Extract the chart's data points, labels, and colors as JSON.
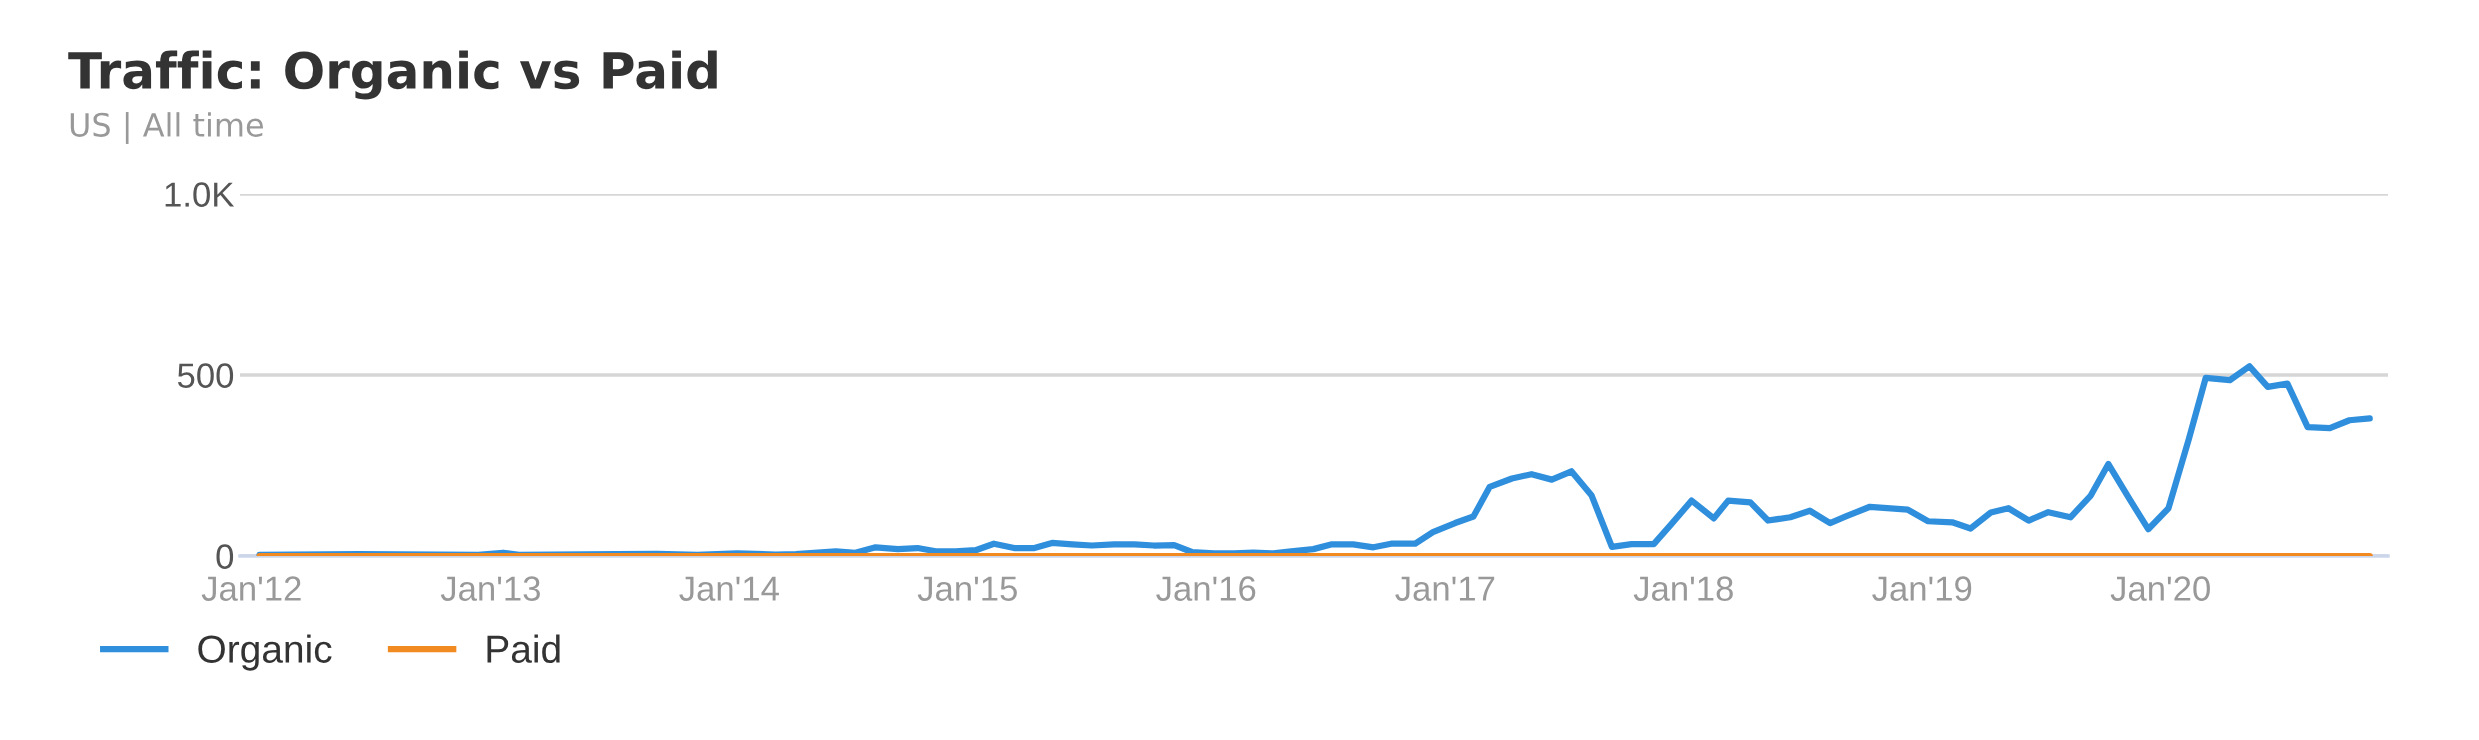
{
  "chart_data": {
    "type": "line",
    "title": "Traffic: Organic vs Paid",
    "subtitle": "US | All time",
    "xlim": [
      "2011-12-14",
      "2020-12-14"
    ],
    "xticks": [
      {
        "value": "2012-01-01",
        "label": "Jan'12"
      },
      {
        "value": "2013-01-01",
        "label": "Jan'13"
      },
      {
        "value": "2014-01-01",
        "label": "Jan'14"
      },
      {
        "value": "2015-01-01",
        "label": "Jan'15"
      },
      {
        "value": "2016-01-01",
        "label": "Jan'16"
      },
      {
        "value": "2017-01-01",
        "label": "Jan'17"
      },
      {
        "value": "2018-01-01",
        "label": "Jan'18"
      },
      {
        "value": "2019-01-01",
        "label": "Jan'19"
      },
      {
        "value": "2020-01-01",
        "label": "Jan'20"
      }
    ],
    "ylim": [
      0,
      1000
    ],
    "yticks": [
      0,
      500,
      {
        "value": 1000,
        "label": "1.0K"
      }
    ],
    "grid": "y",
    "legend": "bottom left",
    "marker": "none",
    "line_style": "solid",
    "series": [
      {
        "name": "Organic",
        "color": "#2f8fdd",
        "x": [
          "2012-01-13",
          "2012-06-13",
          "2012-12-13",
          "2013-01-20",
          "2013-02-13",
          "2013-07-13",
          "2013-09-13",
          "2013-11-13",
          "2014-01-13",
          "2014-03-13",
          "2014-04-13",
          "2014-06-13",
          "2014-07-13",
          "2014-08-13",
          "2014-09-16",
          "2014-10-16",
          "2014-11-13",
          "2014-12-13",
          "2015-01-13",
          "2015-02-10",
          "2015-03-13",
          "2015-04-13",
          "2015-05-10",
          "2015-06-10",
          "2015-07-10",
          "2015-08-13",
          "2015-09-13",
          "2015-10-13",
          "2015-11-13",
          "2015-12-10",
          "2016-01-13",
          "2016-02-13",
          "2016-03-13",
          "2016-04-13",
          "2016-05-10",
          "2016-06-13",
          "2016-07-10",
          "2016-08-13",
          "2016-09-13",
          "2016-10-10",
          "2016-11-16",
          "2016-12-13",
          "2017-01-16",
          "2017-02-13",
          "2017-03-10",
          "2017-04-13",
          "2017-05-13",
          "2017-06-13",
          "2017-07-13",
          "2017-08-13",
          "2017-09-13",
          "2017-10-13",
          "2017-11-16",
          "2017-12-13",
          "2018-01-13",
          "2018-02-16",
          "2018-03-10",
          "2018-04-13",
          "2018-05-10",
          "2018-06-13",
          "2018-07-13",
          "2018-08-13",
          "2018-09-07",
          "2018-10-13",
          "2018-12-10",
          "2019-01-10",
          "2019-02-16",
          "2019-03-16",
          "2019-04-16",
          "2019-05-13",
          "2019-06-13",
          "2019-07-13",
          "2019-08-16",
          "2019-09-16",
          "2019-10-13",
          "2019-11-13",
          "2019-12-13",
          "2020-01-13",
          "2020-02-13",
          "2020-03-10",
          "2020-04-16",
          "2020-05-16",
          "2020-06-13",
          "2020-07-13",
          "2020-08-13",
          "2020-09-16",
          "2020-10-16",
          "2020-11-16"
        ],
        "values": [
          3,
          5,
          3,
          9,
          3,
          5,
          6,
          3,
          7,
          4,
          5,
          13,
          9,
          24,
          19,
          22,
          13,
          13,
          16,
          34,
          22,
          22,
          36,
          32,
          29,
          32,
          32,
          29,
          30,
          11,
          7,
          7,
          9,
          7,
          13,
          19,
          32,
          32,
          24,
          34,
          34,
          66,
          91,
          109,
          191,
          214,
          226,
          211,
          234,
          167,
          25,
          33,
          33,
          88,
          153,
          104,
          153,
          148,
          98,
          107,
          125,
          91,
          110,
          136,
          128,
          96,
          93,
          76,
          120,
          132,
          98,
          121,
          107,
          167,
          254,
          161,
          74,
          132,
          322,
          492,
          486,
          524,
          467,
          476,
          356,
          353,
          375,
          380
        ]
      },
      {
        "name": "Paid",
        "color": "#f28a22",
        "x": [
          "2012-01-13",
          "2014-01-13",
          "2016-01-13",
          "2018-01-13",
          "2020-11-16"
        ],
        "values": [
          0,
          0,
          0,
          0,
          0
        ]
      }
    ]
  }
}
